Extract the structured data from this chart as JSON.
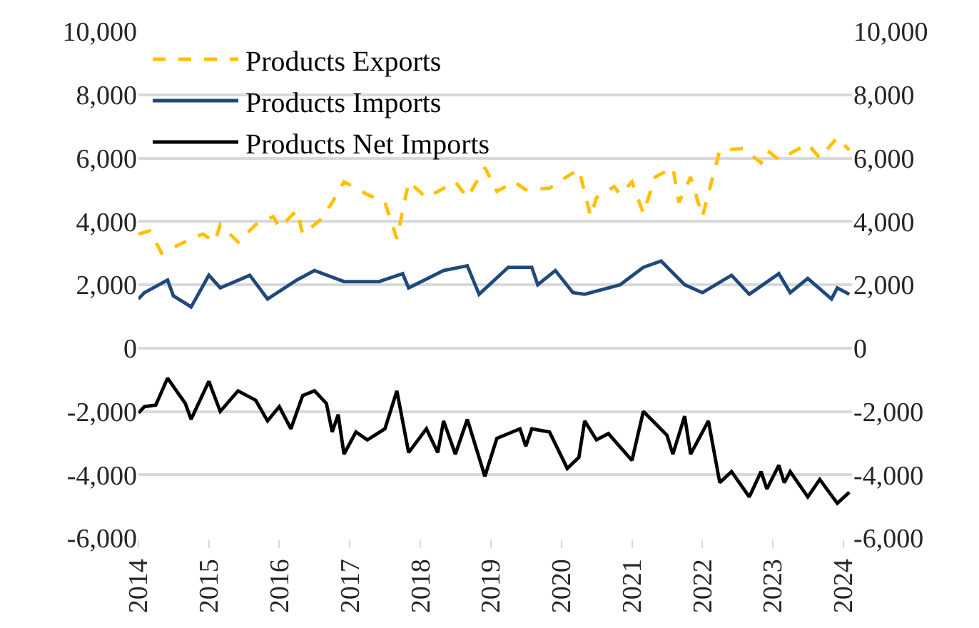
{
  "chart_data": {
    "type": "line",
    "xlim": [
      "2014-01-01",
      "2024-02-15"
    ],
    "xticks": [
      {
        "value": "2014-01-01",
        "label": "2014"
      },
      {
        "value": "2015-01-01",
        "label": "2015"
      },
      {
        "value": "2016-01-01",
        "label": "2016"
      },
      {
        "value": "2017-01-01",
        "label": "2017"
      },
      {
        "value": "2018-01-01",
        "label": "2018"
      },
      {
        "value": "2019-01-01",
        "label": "2019"
      },
      {
        "value": "2020-01-01",
        "label": "2020"
      },
      {
        "value": "2021-01-01",
        "label": "2021"
      },
      {
        "value": "2022-01-01",
        "label": "2022"
      },
      {
        "value": "2023-01-01",
        "label": "2023"
      },
      {
        "value": "2024-01-01",
        "label": "2024"
      }
    ],
    "ylim": [
      -6000,
      10000
    ],
    "yticks": [
      {
        "value": -6000,
        "label": "-6,000"
      },
      {
        "value": -4000,
        "label": "-4,000"
      },
      {
        "value": -2000,
        "label": "-2,000"
      },
      0,
      {
        "value": 2000,
        "label": "2,000"
      },
      {
        "value": 4000,
        "label": "4,000"
      },
      {
        "value": 6000,
        "label": "6,000"
      },
      {
        "value": 8000,
        "label": "8,000"
      },
      {
        "value": 10000,
        "label": "10,000"
      }
    ],
    "y2lim": [
      -6000,
      10000
    ],
    "y2ticks": [
      {
        "value": -6000,
        "label": "-6,000"
      },
      {
        "value": -4000,
        "label": "-4,000"
      },
      {
        "value": -2000,
        "label": "-2,000"
      },
      0,
      {
        "value": 2000,
        "label": "2,000"
      },
      {
        "value": 4000,
        "label": "4,000"
      },
      {
        "value": 6000,
        "label": "6,000"
      },
      {
        "value": 8000,
        "label": "8,000"
      },
      {
        "value": 10000,
        "label": "10,000"
      }
    ],
    "grid": "y",
    "legend": "top left",
    "marker": "none",
    "series": [
      {
        "name": "Products Exports",
        "color": "#ffc000",
        "line_style": "dashed",
        "x": [
          "2014-01",
          "2014-03",
          "2014-05",
          "2014-10",
          "2014-12",
          "2015-02",
          "2015-03",
          "2015-06",
          "2015-09",
          "2015-12",
          "2016-01",
          "2016-04",
          "2016-05",
          "2016-08",
          "2016-10",
          "2016-12",
          "2017-04",
          "2017-07",
          "2017-09",
          "2017-11",
          "2018-02",
          "2018-07",
          "2018-09",
          "2018-12",
          "2019-02",
          "2019-05",
          "2019-07",
          "2019-11",
          "2020-01",
          "2020-04",
          "2020-06",
          "2020-07",
          "2020-10",
          "2020-11",
          "2021-01",
          "2021-03",
          "2021-05",
          "2021-08",
          "2021-09",
          "2021-11",
          "2022-01",
          "2022-04",
          "2022-08",
          "2022-11",
          "2022-12",
          "2023-02",
          "2023-07",
          "2023-09",
          "2023-12",
          "2024-02"
        ],
        "values": [
          3600,
          3700,
          3000,
          3450,
          3600,
          3350,
          3900,
          3350,
          3900,
          4150,
          3800,
          4350,
          3600,
          4050,
          4600,
          5250,
          4850,
          4600,
          3450,
          5250,
          4750,
          5250,
          4750,
          5700,
          4950,
          5250,
          5000,
          5050,
          5300,
          5650,
          4150,
          4750,
          5100,
          4850,
          5250,
          4250,
          5400,
          5700,
          4600,
          5400,
          4150,
          6250,
          6300,
          5850,
          6250,
          5950,
          6450,
          6000,
          6650,
          6250
        ]
      },
      {
        "name": "Products Imports",
        "color": "#1f497d",
        "line_style": "solid",
        "x": [
          "2014-01",
          "2014-02",
          "2014-06",
          "2014-07",
          "2014-10",
          "2015-01",
          "2015-03",
          "2015-08",
          "2015-11",
          "2016-04",
          "2016-07",
          "2016-12",
          "2017-06",
          "2017-10",
          "2017-11",
          "2018-05",
          "2018-09",
          "2018-11",
          "2019-04",
          "2019-08",
          "2019-09",
          "2019-12",
          "2020-03",
          "2020-05",
          "2020-11",
          "2021-03",
          "2021-06",
          "2021-10",
          "2022-01",
          "2022-06",
          "2022-09",
          "2023-02",
          "2023-04",
          "2023-07",
          "2023-11",
          "2023-12",
          "2024-02"
        ],
        "values": [
          1550,
          1750,
          2150,
          1650,
          1300,
          2300,
          1900,
          2300,
          1550,
          2150,
          2450,
          2100,
          2100,
          2350,
          1900,
          2450,
          2600,
          1700,
          2550,
          2550,
          2000,
          2450,
          1750,
          1700,
          2000,
          2550,
          2750,
          2000,
          1750,
          2300,
          1700,
          2350,
          1750,
          2200,
          1550,
          1900,
          1700
        ]
      },
      {
        "name": "Products Net Imports",
        "color": "#000000",
        "line_style": "solid",
        "x": [
          "2014-01",
          "2014-02",
          "2014-04",
          "2014-06",
          "2014-09",
          "2014-10",
          "2015-01",
          "2015-03",
          "2015-06",
          "2015-09",
          "2015-11",
          "2016-01",
          "2016-03",
          "2016-05",
          "2016-07",
          "2016-09",
          "2016-10",
          "2016-11",
          "2016-12",
          "2017-02",
          "2017-04",
          "2017-07",
          "2017-09",
          "2017-11",
          "2018-02",
          "2018-04",
          "2018-05",
          "2018-07",
          "2018-09",
          "2018-12",
          "2019-02",
          "2019-06",
          "2019-07",
          "2019-08",
          "2019-11",
          "2020-02",
          "2020-04",
          "2020-05",
          "2020-07",
          "2020-09",
          "2021-01",
          "2021-03",
          "2021-07",
          "2021-08",
          "2021-10",
          "2021-11",
          "2022-02",
          "2022-04",
          "2022-06",
          "2022-09",
          "2022-11",
          "2022-12",
          "2023-02",
          "2023-03",
          "2023-04",
          "2023-07",
          "2023-09",
          "2023-12",
          "2024-02"
        ],
        "values": [
          -2050,
          -1850,
          -1800,
          -950,
          -1750,
          -2250,
          -1050,
          -2000,
          -1350,
          -1650,
          -2300,
          -1850,
          -2550,
          -1500,
          -1350,
          -1750,
          -2650,
          -2100,
          -3350,
          -2650,
          -2900,
          -2550,
          -1350,
          -3300,
          -2550,
          -3300,
          -2300,
          -3350,
          -2250,
          -4050,
          -2850,
          -2550,
          -3100,
          -2550,
          -2650,
          -3800,
          -3450,
          -2300,
          -2900,
          -2700,
          -3550,
          -2000,
          -2750,
          -3350,
          -2150,
          -3350,
          -2300,
          -4250,
          -3900,
          -4700,
          -3900,
          -4450,
          -3700,
          -4250,
          -3900,
          -4700,
          -4150,
          -4900,
          -4550
        ]
      }
    ]
  }
}
